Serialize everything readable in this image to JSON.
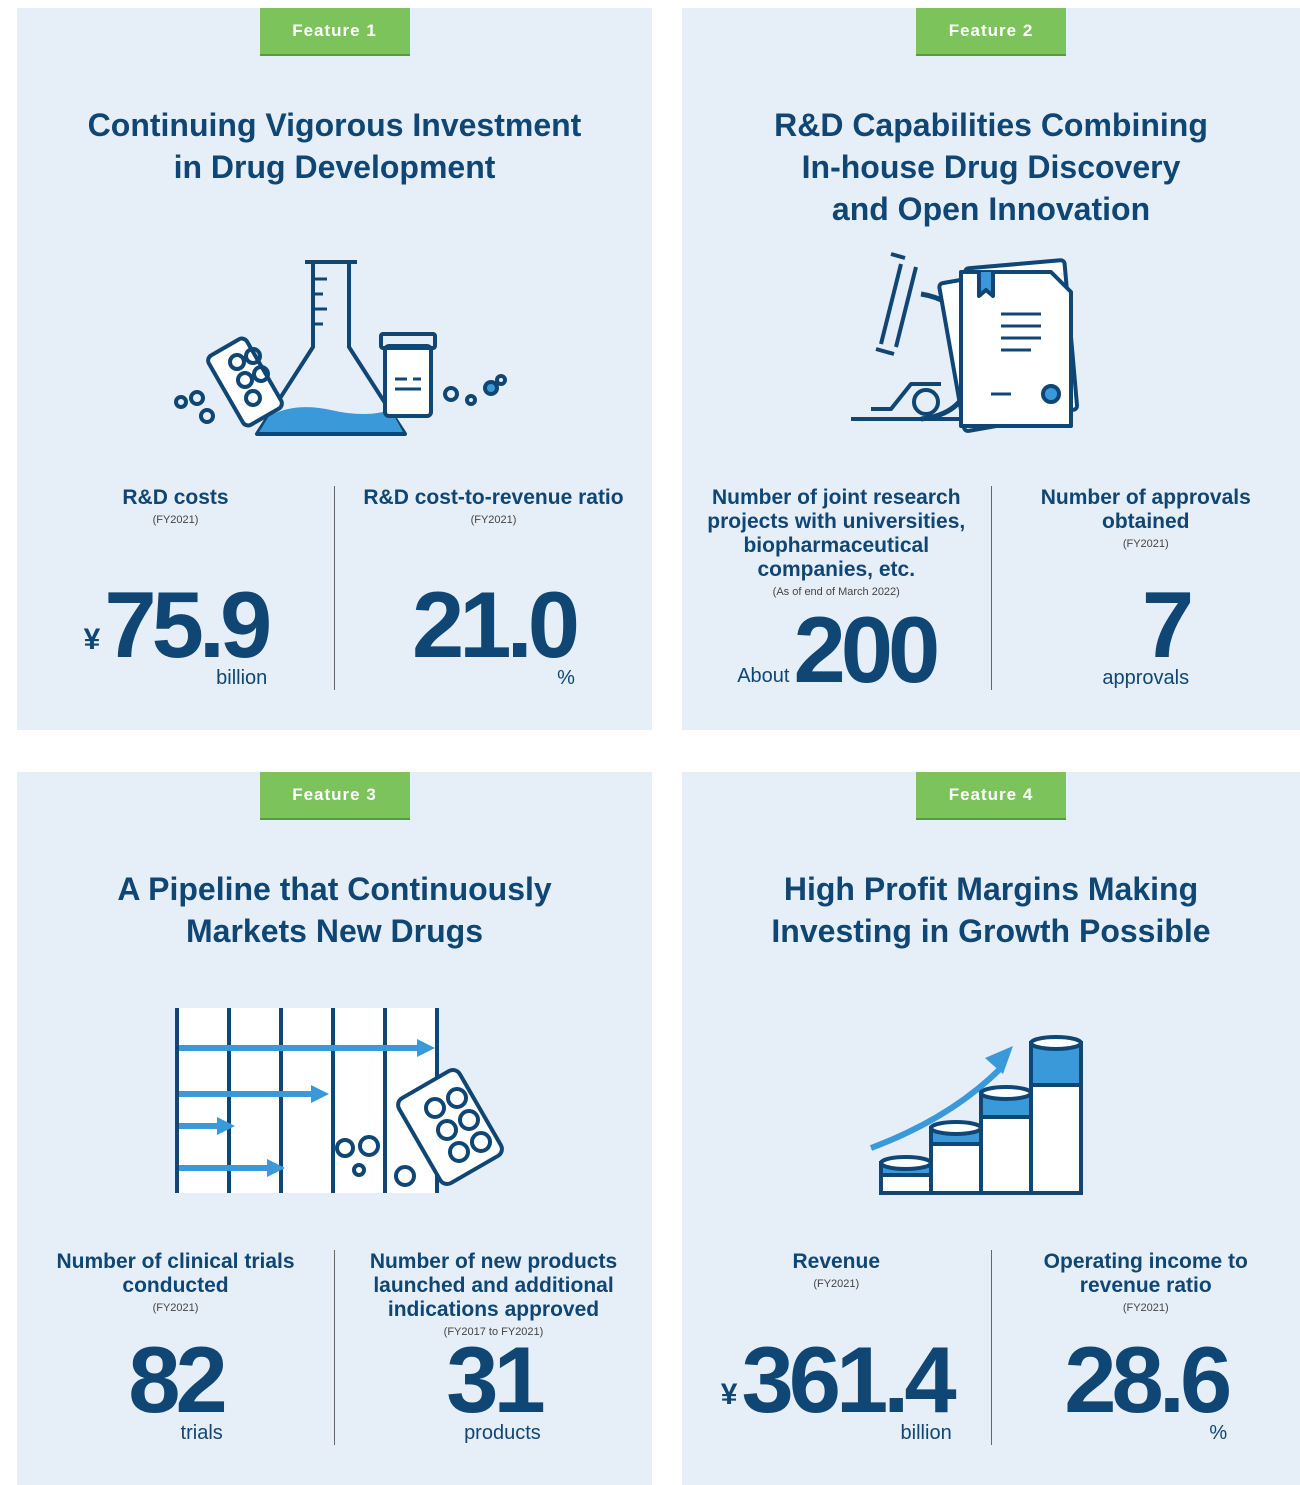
{
  "features": [
    {
      "badge": "Feature 1",
      "title": [
        "Continuing Vigorous Investment",
        "in Drug Development"
      ],
      "stats": [
        {
          "label": "R&D costs",
          "period": "(FY2021)",
          "prefix": "¥",
          "value": "75.9",
          "unit": "billion"
        },
        {
          "label": "R&D cost-to-revenue ratio",
          "period": "(FY2021)",
          "value": "21.0",
          "unit": "%"
        }
      ]
    },
    {
      "badge": "Feature 2",
      "title": [
        "R&D Capabilities Combining",
        "In-house Drug Discovery",
        "and Open Innovation"
      ],
      "stats": [
        {
          "label": "Number of joint research projects with universities, biopharmaceutical companies, etc.",
          "period": "(As of end of March 2022)",
          "prefix": "About",
          "value": "200"
        },
        {
          "label": "Number of approvals obtained",
          "period": "(FY2021)",
          "value": "7",
          "unit": "approvals"
        }
      ]
    },
    {
      "badge": "Feature 3",
      "title": [
        "A Pipeline that Continuously",
        "Markets New Drugs"
      ],
      "stats": [
        {
          "label": "Number of clinical trials conducted",
          "period": "(FY2021)",
          "value": "82",
          "unit": "trials"
        },
        {
          "label": "Number of new products launched and additional indications approved",
          "period": "(FY2017 to FY2021)",
          "value": "31",
          "unit": "products"
        }
      ]
    },
    {
      "badge": "Feature 4",
      "title": [
        "High Profit Margins Making",
        "Investing in Growth Possible"
      ],
      "stats": [
        {
          "label": "Revenue",
          "period": "(FY2021)",
          "prefix": "¥",
          "value": "361.4",
          "unit": "billion"
        },
        {
          "label": "Operating income to revenue ratio",
          "period": "(FY2021)",
          "value": "28.6",
          "unit": "%"
        }
      ]
    }
  ]
}
